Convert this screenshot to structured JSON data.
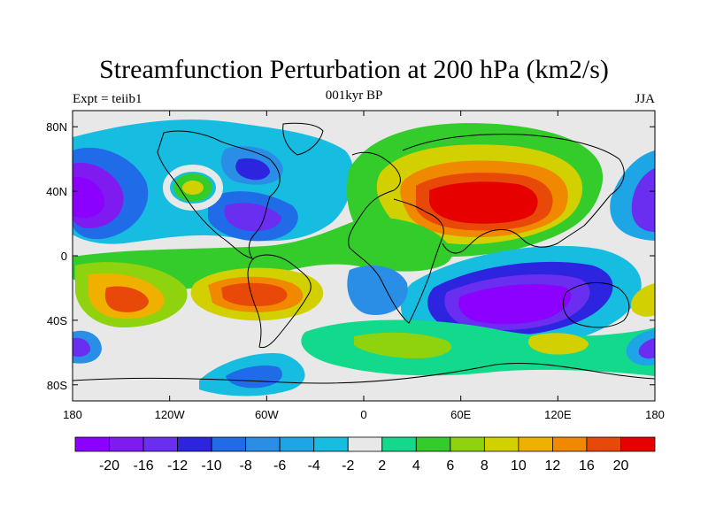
{
  "header": {
    "title": "Streamfunction Perturbation at 200 hPa (km2/s)",
    "left": "Expt = teiib1",
    "center": "001kyr BP",
    "right": "JJA"
  },
  "axes": {
    "lat_ticks": [
      {
        "label": "80N",
        "lat": 80
      },
      {
        "label": "40N",
        "lat": 40
      },
      {
        "label": "0",
        "lat": 0
      },
      {
        "label": "40S",
        "lat": -40
      },
      {
        "label": "80S",
        "lat": -80
      }
    ],
    "lon_ticks": [
      {
        "label": "180",
        "lon": -180
      },
      {
        "label": "120W",
        "lon": -120
      },
      {
        "label": "60W",
        "lon": -60
      },
      {
        "label": "0",
        "lon": 0
      },
      {
        "label": "60E",
        "lon": 60
      },
      {
        "label": "120E",
        "lon": 120
      },
      {
        "label": "180",
        "lon": 180
      }
    ]
  },
  "colorbar": {
    "colors": [
      "#8b00ff",
      "#7f1bf0",
      "#6a2ef0",
      "#2d24e0",
      "#1f6be8",
      "#2a8ee6",
      "#1ea5e6",
      "#16bde0",
      "#e8e8e8",
      "#12d98c",
      "#34cc2a",
      "#8fd20e",
      "#d2d000",
      "#f0b000",
      "#f08800",
      "#e84808",
      "#e60000"
    ],
    "labels": [
      "-20",
      "-16",
      "-12",
      "-10",
      "-8",
      "-6",
      "-4",
      "-2",
      "2",
      "4",
      "6",
      "8",
      "10",
      "12",
      "16",
      "20"
    ]
  },
  "map_features": {
    "projection": "cylindrical equidistant",
    "lon_range": [
      -180,
      180
    ],
    "lat_range": [
      -90,
      90
    ],
    "fill_features": [
      {
        "name": "Asian high",
        "lon": 80,
        "lat": 30,
        "level": 20
      },
      {
        "name": "Australian low",
        "lon": 110,
        "lat": -30,
        "level": -20
      },
      {
        "name": "Pacific east low",
        "lon": -170,
        "lat": 35,
        "level": -20
      },
      {
        "name": "Pacific west low",
        "lon": 175,
        "lat": 35,
        "level": -20
      },
      {
        "name": "North America low",
        "lon": -70,
        "lat": 30,
        "level": -12
      },
      {
        "name": "South America high",
        "lon": -55,
        "lat": -22,
        "level": 16
      },
      {
        "name": "South Pacific high",
        "lon": -145,
        "lat": -32,
        "level": 16
      },
      {
        "name": "Southern Ocean ring",
        "lon": 40,
        "lat": -55,
        "level": 6
      }
    ]
  }
}
